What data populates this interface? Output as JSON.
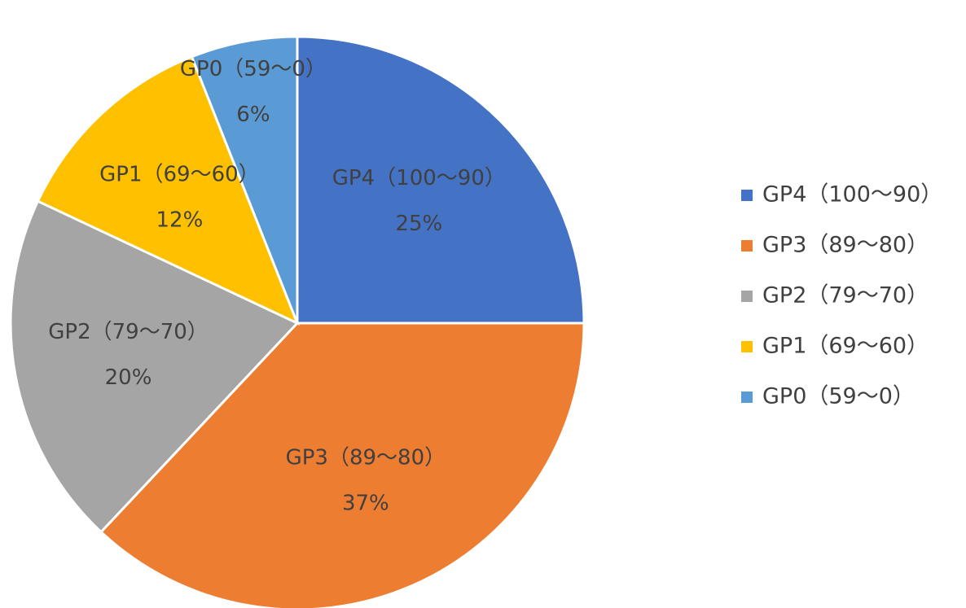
{
  "chart_data": {
    "type": "pie",
    "categories": [
      "GP4（100～90）",
      "GP3（89～80）",
      "GP2（79～70）",
      "GP1（69～60）",
      "GP0（59～0）"
    ],
    "values": [
      25,
      37,
      20,
      12,
      6
    ],
    "value_labels": [
      "25%",
      "37%",
      "20%",
      "12%",
      "6%"
    ],
    "colors": [
      "#4472c4",
      "#ed7d31",
      "#a5a5a5",
      "#ffc000",
      "#5b9bd5"
    ],
    "legend": "right"
  }
}
